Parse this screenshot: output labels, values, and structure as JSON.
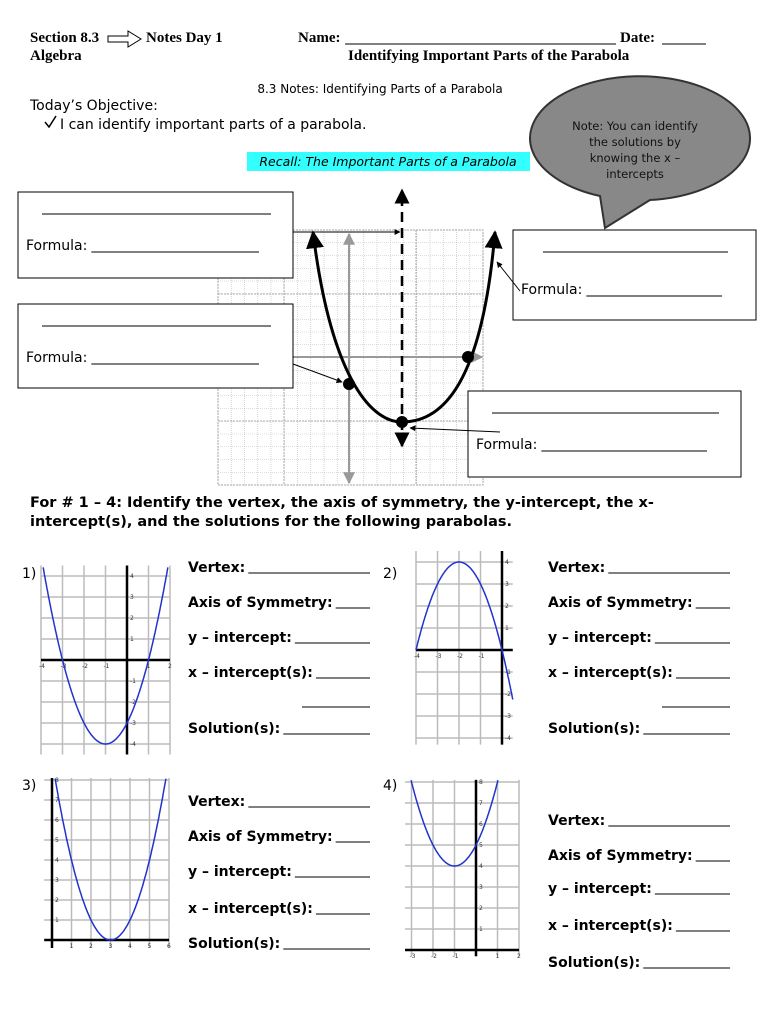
{
  "header": {
    "section": "Section 8.3",
    "notes": "Notes Day 1",
    "course": "Algebra",
    "name_label": "Name:",
    "date_label": "Date:",
    "title": "Identifying Important Parts of the Parabola"
  },
  "subtitle": "8.3 Notes: Identifying Parts of a Parabola",
  "objective": {
    "heading": "Today’s Objective:",
    "item": "I can identify important parts of a parabola."
  },
  "callout": "Note: You can identify the solutions by knowing the x – intercepts",
  "recall": "Recall: The Important Parts of a Parabola",
  "formula_boxes": [
    "Formula:",
    "Formula:",
    "Formula:",
    "Formula:"
  ],
  "instructions": "For # 1 – 4: Identify the vertex, the axis of symmetry, the y-intercept, the x-intercept(s), and the solutions for the following parabolas.",
  "problems": [
    {
      "number": "1)",
      "fields": [
        "Vertex:",
        "Axis of Symmetry:",
        "y – intercept:",
        "x – intercept(s):",
        "Solution(s):"
      ],
      "x_labels": [
        "-4",
        "-3",
        "-2",
        "-1",
        "1",
        "2"
      ],
      "y_labels": [
        "4",
        "3",
        "2",
        "1",
        "-1",
        "-2",
        "-3",
        "-4"
      ]
    },
    {
      "number": "2)",
      "fields": [
        "Vertex:",
        "Axis of Symmetry:",
        "y – intercept:",
        "x – intercept(s):",
        "Solution(s):"
      ],
      "x_labels": [
        "-4",
        "-3",
        "-2",
        "-1"
      ],
      "y_labels": [
        "4",
        "3",
        "2",
        "1",
        "-1",
        "-2",
        "-3",
        "-4"
      ]
    },
    {
      "number": "3)",
      "fields": [
        "Vertex:",
        "Axis of Symmetry:",
        "y – intercept:",
        "x – intercept(s):",
        "Solution(s):"
      ],
      "x_labels": [
        "1",
        "2",
        "3",
        "4",
        "5",
        "6"
      ],
      "y_labels": [
        "1",
        "2",
        "3",
        "4",
        "5",
        "6",
        "7",
        "8"
      ]
    },
    {
      "number": "4)",
      "fields": [
        "Vertex:",
        "Axis of Symmetry:",
        "y – intercept:",
        "x – intercept(s):",
        "Solution(s):"
      ],
      "x_labels": [
        "-3",
        "-2",
        "-1",
        "1",
        "2"
      ],
      "y_labels": [
        "1",
        "2",
        "3",
        "4",
        "5",
        "6",
        "7",
        "8"
      ]
    }
  ]
}
